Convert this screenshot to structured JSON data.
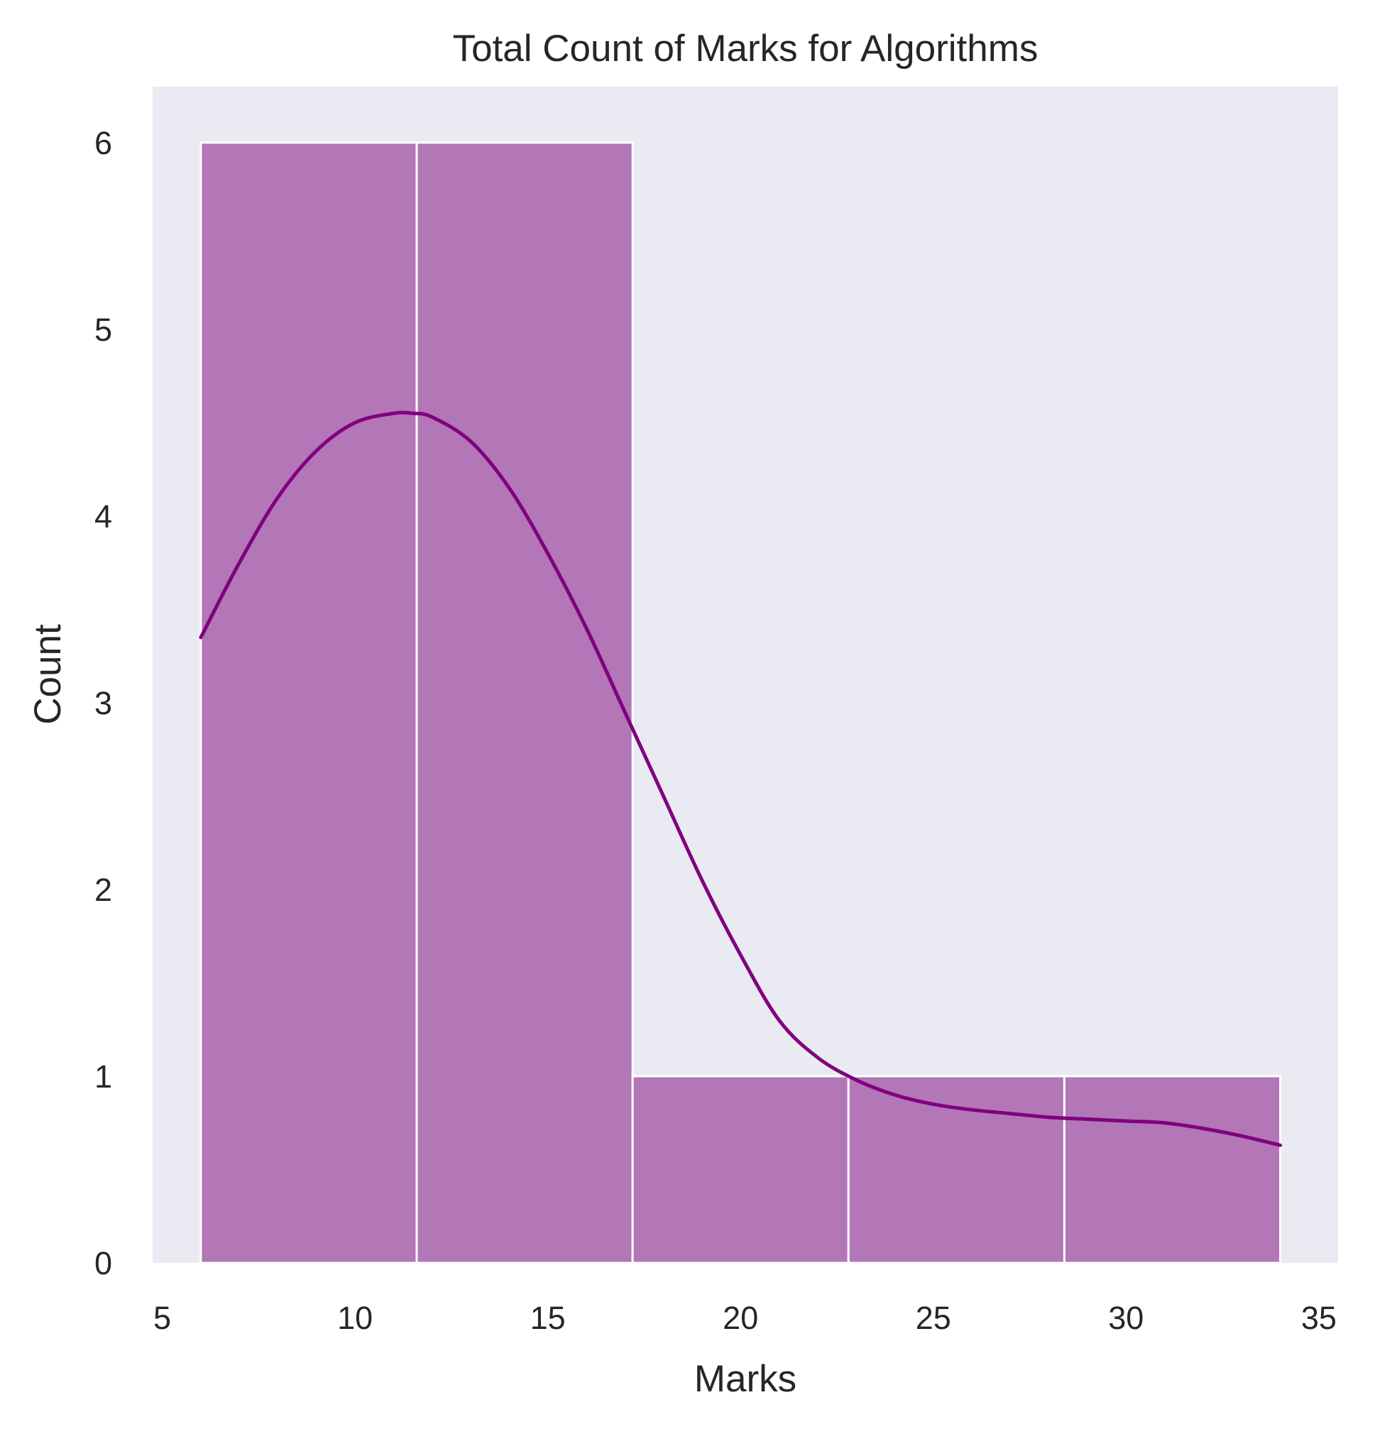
{
  "chart_data": {
    "type": "bar",
    "subtype": "histogram-with-kde",
    "title": "Total Count of Marks for Algorithms",
    "xlabel": "Marks",
    "ylabel": "Count",
    "xlim": [
      4.75,
      35.5
    ],
    "ylim": [
      0,
      6.3
    ],
    "x_ticks": [
      "5",
      "10",
      "15",
      "20",
      "25",
      "30",
      "35"
    ],
    "y_ticks": [
      "0",
      "1",
      "2",
      "3",
      "4",
      "5",
      "6"
    ],
    "bins": [
      {
        "start": 6,
        "end": 11.6,
        "count": 6
      },
      {
        "start": 11.6,
        "end": 17.2,
        "count": 6
      },
      {
        "start": 17.2,
        "end": 22.8,
        "count": 1
      },
      {
        "start": 22.8,
        "end": 28.4,
        "count": 1
      },
      {
        "start": 28.4,
        "end": 34,
        "count": 1
      }
    ],
    "kde": {
      "x": [
        6,
        7,
        8,
        9,
        10,
        11,
        11.5,
        12,
        13,
        14,
        15,
        16,
        17,
        18,
        19,
        20,
        21,
        22,
        23,
        24,
        25,
        26,
        27,
        28,
        29,
        30,
        31,
        32,
        33,
        34
      ],
      "y": [
        3.35,
        3.75,
        4.1,
        4.35,
        4.5,
        4.55,
        4.55,
        4.53,
        4.4,
        4.15,
        3.8,
        3.4,
        2.95,
        2.5,
        2.05,
        1.65,
        1.3,
        1.1,
        0.98,
        0.9,
        0.85,
        0.82,
        0.8,
        0.78,
        0.77,
        0.76,
        0.75,
        0.72,
        0.68,
        0.63
      ]
    },
    "bar_color": "#b376b7",
    "line_color": "#800080",
    "plot_background": "#eaeaf2",
    "grid": false,
    "legend": "none"
  }
}
